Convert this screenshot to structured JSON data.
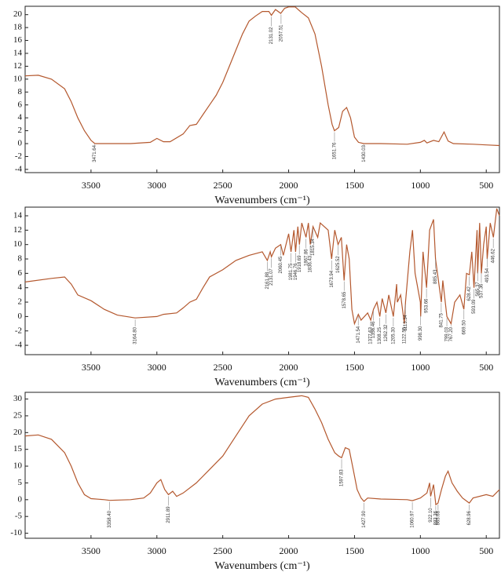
{
  "chart_data": [
    {
      "type": "line",
      "xlabel": "Wavenumbers (cm⁻¹)",
      "color": "#b4582e",
      "xlim": [
        4000,
        400
      ],
      "ylim": [
        -4.5,
        21.3
      ],
      "xticks": [
        3500,
        3000,
        2500,
        2000,
        1500,
        1000,
        500
      ],
      "yticks": [
        -4,
        -2,
        0,
        2,
        4,
        6,
        8,
        10,
        12,
        14,
        16,
        18,
        20
      ],
      "x": [
        4000,
        3900,
        3800,
        3700,
        3650,
        3600,
        3550,
        3500,
        3471,
        3400,
        3200,
        3050,
        3000,
        2950,
        2900,
        2800,
        2750,
        2700,
        2650,
        2600,
        2550,
        2500,
        2450,
        2400,
        2350,
        2300,
        2250,
        2200,
        2150,
        2131,
        2100,
        2060,
        2030,
        2000,
        1950,
        1900,
        1850,
        1800,
        1750,
        1700,
        1670,
        1652,
        1620,
        1590,
        1560,
        1530,
        1500,
        1470,
        1430,
        1300,
        1100,
        1000,
        970,
        950,
        900,
        860,
        820,
        790,
        750,
        600,
        500,
        400
      ],
      "values": [
        10.5,
        10.6,
        10.0,
        8.5,
        6.5,
        4,
        2,
        0.5,
        0,
        0,
        0,
        0.2,
        0.8,
        0.3,
        0.3,
        1.5,
        2.8,
        3.0,
        4.5,
        6,
        7.5,
        9.5,
        12,
        14.5,
        17,
        19,
        19.8,
        20.5,
        20.5,
        19.9,
        20.8,
        20.2,
        21,
        21.2,
        21.2,
        20.3,
        19.5,
        17,
        12,
        6,
        3,
        2,
        2.5,
        5,
        5.6,
        4,
        1,
        0.2,
        0,
        0,
        -0.1,
        0.2,
        0.5,
        0.1,
        0.5,
        0.3,
        1.8,
        0.4,
        0,
        -0.1,
        -0.2,
        -0.3
      ],
      "annotations": [
        {
          "x": 3471.64,
          "label": "3471.64"
        },
        {
          "x": 2131.02,
          "label": "2131.02"
        },
        {
          "x": 2057.51,
          "label": "2057.51"
        },
        {
          "x": 1651.76,
          "label": "1651.76"
        },
        {
          "x": 1430.03,
          "label": "1430.03"
        }
      ]
    },
    {
      "type": "line",
      "xlabel": "Wavenumbers (cm⁻¹)",
      "color": "#b4582e",
      "xlim": [
        4000,
        400
      ],
      "ylim": [
        -5.3,
        15.2
      ],
      "xticks": [
        3500,
        3000,
        2500,
        2000,
        1500,
        1000,
        500
      ],
      "yticks": [
        -4,
        -2,
        0,
        2,
        4,
        6,
        8,
        10,
        12,
        14
      ],
      "x": [
        4000,
        3800,
        3700,
        3650,
        3600,
        3500,
        3400,
        3300,
        3165,
        3000,
        2950,
        2850,
        2800,
        2750,
        2700,
        2650,
        2600,
        2500,
        2400,
        2300,
        2200,
        2162,
        2140,
        2131,
        2100,
        2060,
        2040,
        2000,
        1982,
        1960,
        1947,
        1930,
        1918,
        1900,
        1868,
        1850,
        1836,
        1815,
        1779,
        1760,
        1700,
        1674,
        1650,
        1625,
        1600,
        1579,
        1560,
        1540,
        1520,
        1500,
        1471,
        1450,
        1400,
        1377,
        1356,
        1330,
        1308,
        1290,
        1262,
        1240,
        1205,
        1180,
        1175,
        1150,
        1122,
        1113,
        1080,
        1060,
        1040,
        1000,
        998,
        980,
        953,
        930,
        900,
        885,
        870,
        841,
        830,
        799,
        767,
        740,
        700,
        670,
        650,
        628,
        610,
        593,
        570,
        565,
        550,
        537,
        520,
        500,
        493,
        470,
        446,
        420,
        400
      ],
      "values": [
        4.8,
        5.3,
        5.5,
        4.5,
        3,
        2.2,
        1,
        0.2,
        -0.2,
        0,
        0.3,
        0.5,
        1.2,
        2,
        2.4,
        4,
        5.5,
        6.5,
        7.8,
        8.5,
        9,
        7.8,
        9,
        8.3,
        9.5,
        10,
        8.5,
        11.5,
        9,
        12,
        9,
        12.5,
        10,
        13,
        11,
        13,
        10,
        12.5,
        11,
        13,
        12,
        8,
        12,
        10,
        11,
        5,
        10,
        8,
        1,
        -1,
        0.3,
        -0.5,
        0.5,
        -0.5,
        1,
        2,
        0,
        2.5,
        0.5,
        3,
        0,
        4.5,
        2,
        3,
        -1,
        2,
        9,
        12,
        6,
        2,
        0,
        9,
        4,
        12,
        13.5,
        8,
        6,
        2,
        5,
        0,
        -1,
        2,
        3,
        1,
        6,
        5.8,
        9,
        4,
        12,
        6,
        13,
        6,
        10,
        12.5,
        8,
        13,
        11,
        15,
        14
      ],
      "annotations": [
        {
          "x": 3164.8,
          "label": "3164.80"
        },
        {
          "x": 2161.88,
          "label": "2161.88"
        },
        {
          "x": 2131.07,
          "label": "2131.07"
        },
        {
          "x": 2060.45,
          "label": "2060.45"
        },
        {
          "x": 1981.75,
          "label": "1981.75"
        },
        {
          "x": 1946.76,
          "label": "1946.76"
        },
        {
          "x": 1918.69,
          "label": "1918.69"
        },
        {
          "x": 1867.86,
          "label": "1867.86"
        },
        {
          "x": 1836.43,
          "label": "1836.43"
        },
        {
          "x": 1815.34,
          "label": "1815.34"
        },
        {
          "x": 1673.94,
          "label": "1673.94"
        },
        {
          "x": 1625.52,
          "label": "1625.52"
        },
        {
          "x": 1578.65,
          "label": "1578.65"
        },
        {
          "x": 1471.54,
          "label": "1471.54"
        },
        {
          "x": 1377.63,
          "label": "1377.63"
        },
        {
          "x": 1356.46,
          "label": "1356.46"
        },
        {
          "x": 1308.25,
          "label": "1308.25"
        },
        {
          "x": 1262.32,
          "label": "1262.32"
        },
        {
          "x": 1205.3,
          "label": "1205.30"
        },
        {
          "x": 1122.55,
          "label": "1122.55"
        },
        {
          "x": 1113.34,
          "label": "1113.34"
        },
        {
          "x": 998.3,
          "label": "998.30"
        },
        {
          "x": 953.66,
          "label": "953.66"
        },
        {
          "x": 885.43,
          "label": "885.43"
        },
        {
          "x": 841.75,
          "label": "841.75"
        },
        {
          "x": 799.03,
          "label": "799.03"
        },
        {
          "x": 767.2,
          "label": "767.20"
        },
        {
          "x": 669.5,
          "label": "669.50"
        },
        {
          "x": 628.42,
          "label": "628.42"
        },
        {
          "x": 593.09,
          "label": "593.09"
        },
        {
          "x": 565.37,
          "label": "565.37"
        },
        {
          "x": 537.36,
          "label": "537.36"
        },
        {
          "x": 493.54,
          "label": "493.54"
        },
        {
          "x": 446.62,
          "label": "446.62"
        }
      ]
    },
    {
      "type": "line",
      "xlabel": "Wavenumbers (cm⁻¹)",
      "color": "#b4582e",
      "xlim": [
        4000,
        400
      ],
      "ylim": [
        -11.5,
        32
      ],
      "xticks": [
        3500,
        3000,
        2500,
        2000,
        1500,
        1000,
        500
      ],
      "yticks": [
        -10,
        -5,
        0,
        5,
        10,
        15,
        20,
        25,
        30
      ],
      "x": [
        4000,
        3900,
        3800,
        3700,
        3650,
        3600,
        3550,
        3500,
        3400,
        3358,
        3200,
        3100,
        3050,
        3000,
        2970,
        2940,
        2912,
        2880,
        2850,
        2800,
        2700,
        2600,
        2500,
        2400,
        2300,
        2200,
        2100,
        2000,
        1900,
        1850,
        1800,
        1750,
        1700,
        1650,
        1620,
        1598,
        1570,
        1540,
        1510,
        1480,
        1450,
        1428,
        1400,
        1300,
        1100,
        1061,
        1000,
        950,
        930,
        922,
        900,
        883,
        866,
        840,
        810,
        790,
        760,
        720,
        680,
        629,
        600,
        500,
        450,
        400
      ],
      "values": [
        19,
        19.3,
        18,
        14,
        10,
        5,
        1.5,
        0.3,
        0,
        -0.2,
        0,
        0.5,
        2,
        5,
        6,
        3,
        1.5,
        2.5,
        1,
        2,
        5,
        9,
        13,
        19,
        25,
        28.5,
        30,
        30.5,
        31,
        30.5,
        27,
        23,
        18,
        14,
        13,
        12.5,
        15.5,
        15,
        9,
        3,
        0.5,
        -0.5,
        0.5,
        0.2,
        0,
        -0.3,
        0.5,
        2,
        5,
        1,
        4.5,
        -1.5,
        -1,
        3,
        7,
        8.5,
        5,
        2.5,
        0.5,
        -1,
        0.5,
        1.5,
        1,
        3
      ],
      "annotations": [
        {
          "x": 3358.4,
          "label": "3358.40"
        },
        {
          "x": 2911.89,
          "label": "2911.89"
        },
        {
          "x": 1597.83,
          "label": "1597.83"
        },
        {
          "x": 1427.9,
          "label": "1427.90"
        },
        {
          "x": 1060.97,
          "label": "1060.97"
        },
        {
          "x": 922.1,
          "label": "922.10"
        },
        {
          "x": 883.36,
          "label": "883.36"
        },
        {
          "x": 865.68,
          "label": "865.68"
        },
        {
          "x": 628.96,
          "label": "628.96"
        }
      ]
    }
  ]
}
